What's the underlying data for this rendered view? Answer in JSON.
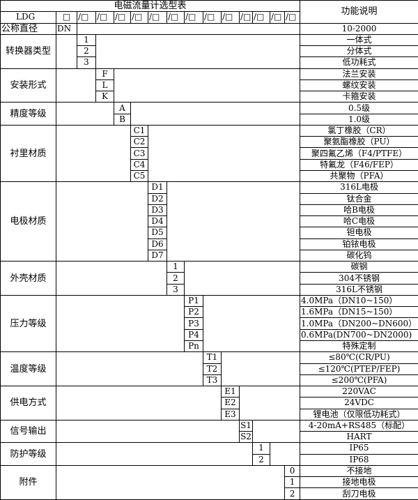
{
  "title": "电磁流量计选型表",
  "function_header": "功能说明",
  "model_row": {
    "prefix": "LDG",
    "first_box": "□",
    "boxes": [
      "/□",
      "/□",
      "/□",
      "/□",
      "/□",
      "/□",
      "/□",
      "/□",
      "/□",
      "/□",
      "/□",
      "/□",
      "/□"
    ]
  },
  "nominal_row": {
    "label": "公称直径",
    "code": "DN",
    "desc": "10-2000"
  },
  "groups": [
    {
      "label": "转换器类型",
      "codes": [
        "1",
        "2",
        "3"
      ],
      "descs": [
        "一体式",
        "分体式",
        "低功耗式"
      ]
    },
    {
      "label": "安装形式",
      "codes": [
        "F",
        "L",
        "K"
      ],
      "descs": [
        "法兰安装",
        "螺纹安装",
        "卡箍安装"
      ]
    },
    {
      "label": "精度等级",
      "codes": [
        "A",
        "B"
      ],
      "descs": [
        "0.5级",
        "1.0级"
      ]
    },
    {
      "label": "衬里材质",
      "codes": [
        "C1",
        "C2",
        "C3",
        "C4",
        "C5"
      ],
      "descs": [
        "氯丁橡胶（CR）",
        "聚氨酯橡胶（PU）",
        "聚四氟乙烯（F4/PTFE）",
        "特氟龙（F46/FEP）",
        "共聚物（PFA）"
      ]
    },
    {
      "label": "电极材质",
      "codes": [
        "D1",
        "D2",
        "D3",
        "D4",
        "D5",
        "D6",
        "D7"
      ],
      "descs": [
        "316L电极",
        "钛合金",
        "哈B电极",
        "哈C电极",
        "钽电极",
        "铂铱电极",
        "碳化钨"
      ]
    },
    {
      "label": "外壳材质",
      "codes": [
        "1",
        "2",
        "3"
      ],
      "descs": [
        "碳钢",
        "304不锈钢",
        "316L不锈钢"
      ]
    },
    {
      "label": "压力等级",
      "codes": [
        "P1",
        "P2",
        "P3",
        "P4",
        "Pn"
      ],
      "descs": [
        "4.0MPa（DN10~150）",
        "1.6MPa（DN15~150）",
        "1.0MPa（DN200~DN600）",
        "0.6MPa(DN700~DN2000)",
        "特殊定制"
      ]
    },
    {
      "label": "温度等级",
      "codes": [
        "T1",
        "T2",
        "T3"
      ],
      "descs": [
        "≤80℃(CR/PU)",
        "≤120℃(PTEP/FEP)",
        "≤200℃(PFA)"
      ]
    },
    {
      "label": "供电方式",
      "codes": [
        "E1",
        "E2",
        "E3"
      ],
      "descs": [
        "220VAC",
        "24VDC",
        "锂电池（仅限低功耗式）"
      ]
    },
    {
      "label": "信号输出",
      "codes": [
        "S1",
        "S2"
      ],
      "descs": [
        "4-20mA+RS485（标配）",
        "HART"
      ]
    },
    {
      "label": "防护等级",
      "codes": [
        "1",
        "2"
      ],
      "descs": [
        "IP65",
        "IP68"
      ]
    },
    {
      "label": "附件",
      "codes": [
        "0",
        "1",
        "2"
      ],
      "descs": [
        "不接地",
        "接地电极",
        "刮刀电极"
      ]
    }
  ]
}
